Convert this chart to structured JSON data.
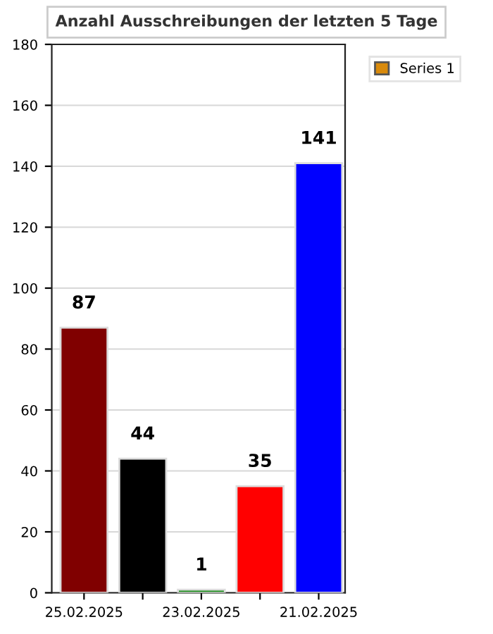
{
  "chart_data": {
    "type": "bar",
    "title": "Anzahl Ausschreibungen der letzten 5 Tage",
    "categories": [
      "25.02.2025",
      null,
      "23.02.2025",
      null,
      "21.02.2025"
    ],
    "series": [
      {
        "name": "Series 1",
        "color": "#d98a0b",
        "values": [
          87,
          44,
          1,
          35,
          141
        ],
        "colors": [
          "#800000",
          "#000000",
          "#008000",
          "#ff0000",
          "#0000ff"
        ]
      }
    ],
    "ylim": [
      0,
      180
    ],
    "yticks": [
      0,
      20,
      40,
      60,
      80,
      100,
      120,
      140,
      160,
      180
    ],
    "grid": "y",
    "legend": "top right",
    "data_labels": true
  }
}
